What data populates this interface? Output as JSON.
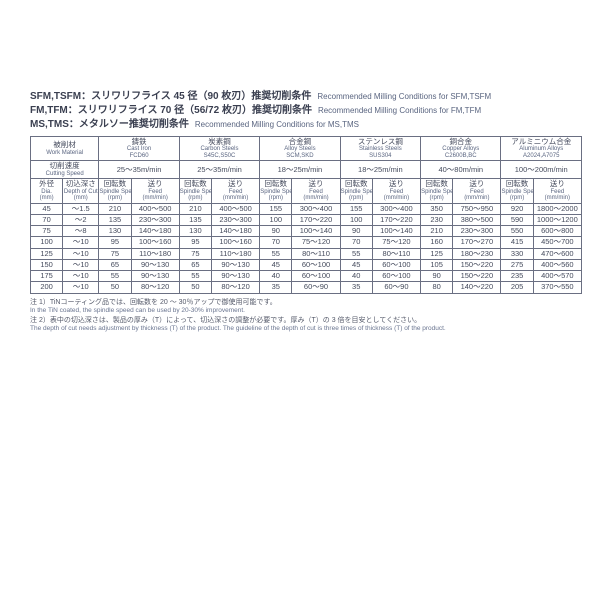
{
  "headings": [
    {
      "jp": "SFM,TSFM：スリワリフライス 45 径（90 枚刃）推奨切削条件",
      "en": "Recommended Milling Conditions for SFM,TSFM"
    },
    {
      "jp": "FM,TFM：スリワリフライス 70 径（56/72 枚刃）推奨切削条件",
      "en": "Recommended Milling Conditions for FM,TFM"
    },
    {
      "jp": "MS,TMS：メタルソー推奨切削条件",
      "en": "Recommended Milling Conditions for MS,TMS"
    }
  ],
  "header": {
    "work_material": {
      "jp": "被削材",
      "en": "Work Material"
    },
    "cutting_speed": {
      "jp": "切削速度",
      "en": "Cutting Speed"
    },
    "dia": {
      "jp": "外径",
      "en": "Dia.",
      "unit": "(mm)"
    },
    "doc": {
      "jp": "切込深さ",
      "en": "Depth of Cut",
      "unit": "(mm)"
    },
    "rpm": {
      "jp": "回転数",
      "en": "Spindle Speed",
      "unit": "(rpm)"
    },
    "feed": {
      "jp": "送り",
      "en": "Feed",
      "unit": "(mm/min)"
    }
  },
  "materials": [
    {
      "jp": "鋳鉄",
      "en": "Cast Iron",
      "grade": "FCD60",
      "speed": "25～35m/min"
    },
    {
      "jp": "炭素鋼",
      "en": "Carbon Steels",
      "grade": "S45C,S50C",
      "speed": "25～35m/min"
    },
    {
      "jp": "合金鋼",
      "en": "Alloy Steels",
      "grade": "SCM,SKD",
      "speed": "18～25m/min"
    },
    {
      "jp": "ステンレス鋼",
      "en": "Stainless Steels",
      "grade": "SUS304",
      "speed": "18～25m/min"
    },
    {
      "jp": "銅合金",
      "en": "Copper Alloys",
      "grade": "C2600B,BC",
      "speed": "40～80m/min"
    },
    {
      "jp": "アルミニウム合金",
      "en": "Aluminum Alloys",
      "grade": "A2024,A7075",
      "speed": "100～200m/min"
    }
  ],
  "rows": [
    {
      "dia": "45",
      "doc": "～1.5",
      "cells": [
        [
          "210",
          "400～500"
        ],
        [
          "210",
          "400～500"
        ],
        [
          "155",
          "300～400"
        ],
        [
          "155",
          "300～400"
        ],
        [
          "350",
          "750～950"
        ],
        [
          "920",
          "1800～2000"
        ]
      ]
    },
    {
      "dia": "70",
      "doc": "～2",
      "cells": [
        [
          "135",
          "230～300"
        ],
        [
          "135",
          "230～300"
        ],
        [
          "100",
          "170～220"
        ],
        [
          "100",
          "170～220"
        ],
        [
          "230",
          "380～500"
        ],
        [
          "590",
          "1000～1200"
        ]
      ]
    },
    {
      "dia": "75",
      "doc": "～8",
      "cells": [
        [
          "130",
          "140～180"
        ],
        [
          "130",
          "140～180"
        ],
        [
          "90",
          "100～140"
        ],
        [
          "90",
          "100～140"
        ],
        [
          "210",
          "230～300"
        ],
        [
          "550",
          "600～800"
        ]
      ]
    },
    {
      "dia": "100",
      "doc": "～10",
      "cells": [
        [
          "95",
          "100～160"
        ],
        [
          "95",
          "100～160"
        ],
        [
          "70",
          "75～120"
        ],
        [
          "70",
          "75～120"
        ],
        [
          "160",
          "170～270"
        ],
        [
          "415",
          "450～700"
        ]
      ]
    },
    {
      "dia": "125",
      "doc": "～10",
      "cells": [
        [
          "75",
          "110～180"
        ],
        [
          "75",
          "110～180"
        ],
        [
          "55",
          "80～110"
        ],
        [
          "55",
          "80～110"
        ],
        [
          "125",
          "180～230"
        ],
        [
          "330",
          "470～600"
        ]
      ]
    },
    {
      "dia": "150",
      "doc": "～10",
      "cells": [
        [
          "65",
          "90～130"
        ],
        [
          "65",
          "90～130"
        ],
        [
          "45",
          "60～100"
        ],
        [
          "45",
          "60～100"
        ],
        [
          "105",
          "150～220"
        ],
        [
          "275",
          "400～560"
        ]
      ]
    },
    {
      "dia": "175",
      "doc": "～10",
      "cells": [
        [
          "55",
          "90～130"
        ],
        [
          "55",
          "90～130"
        ],
        [
          "40",
          "60～100"
        ],
        [
          "40",
          "60～100"
        ],
        [
          "90",
          "150～220"
        ],
        [
          "235",
          "400～570"
        ]
      ]
    },
    {
      "dia": "200",
      "doc": "～10",
      "cells": [
        [
          "50",
          "80～120"
        ],
        [
          "50",
          "80～120"
        ],
        [
          "35",
          "60～90"
        ],
        [
          "35",
          "60～90"
        ],
        [
          "80",
          "140～220"
        ],
        [
          "205",
          "370～550"
        ]
      ]
    }
  ],
  "notes": [
    {
      "jp": "注 1）TiNコーティング品では、回転数を 20 ～ 30％アップで御使用可能です。",
      "en": "In the TiN coated, the spindle speed can be used by 20-30% improvement."
    },
    {
      "jp": "注 2）表中の切込深さは、製品の厚み（T）によって、切込深さの調整が必要です。厚み（T）の 3 倍を目安としてください。",
      "en": "The depth of cut needs adjustment by thickness (T) of the product. The guideline of the depth of cut is three times of thickness (T) of the product."
    }
  ]
}
